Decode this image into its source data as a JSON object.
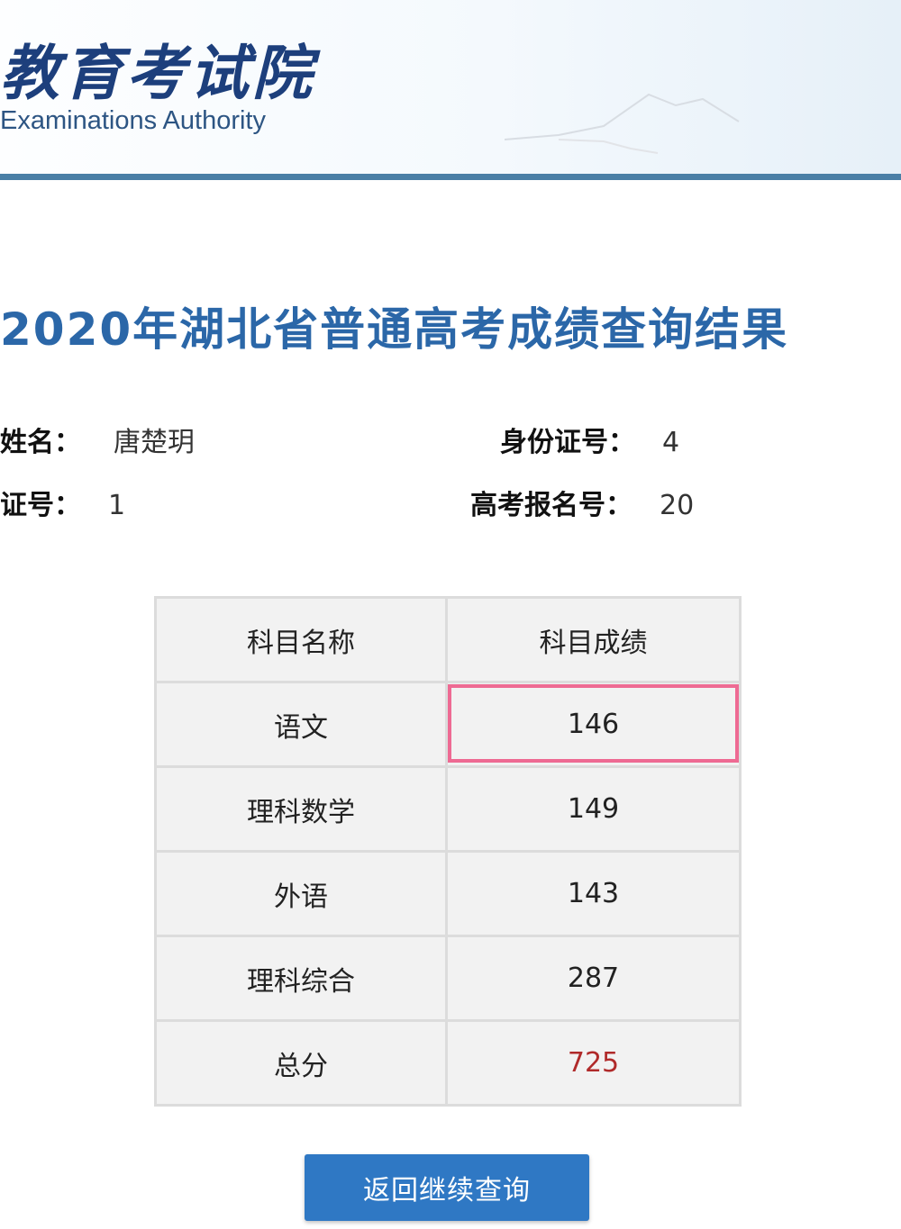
{
  "header": {
    "logo_cn": "教育考试院",
    "logo_en": "Examinations Authority"
  },
  "title": "2020年湖北省普通高考成绩查询结果",
  "info": {
    "name_label": "姓名：",
    "name_value": "唐楚玥",
    "id_label": "身份证号：",
    "id_value": "4",
    "exam_no_label": "证号：",
    "exam_no_value": "1",
    "reg_label": "高考报名号：",
    "reg_value": "20"
  },
  "table": {
    "headers": [
      "科目名称",
      "科目成绩"
    ],
    "rows": [
      {
        "subject": "语文",
        "score": "146"
      },
      {
        "subject": "理科数学",
        "score": "149"
      },
      {
        "subject": "外语",
        "score": "143"
      },
      {
        "subject": "理科综合",
        "score": "287"
      },
      {
        "subject": "总分",
        "score": "725"
      }
    ]
  },
  "colors": {
    "title": "#2b67a8",
    "highlight": "#ee6a93",
    "total": "#b02a2a",
    "button": "#2f78c4"
  },
  "button_label": "返回继续查询"
}
